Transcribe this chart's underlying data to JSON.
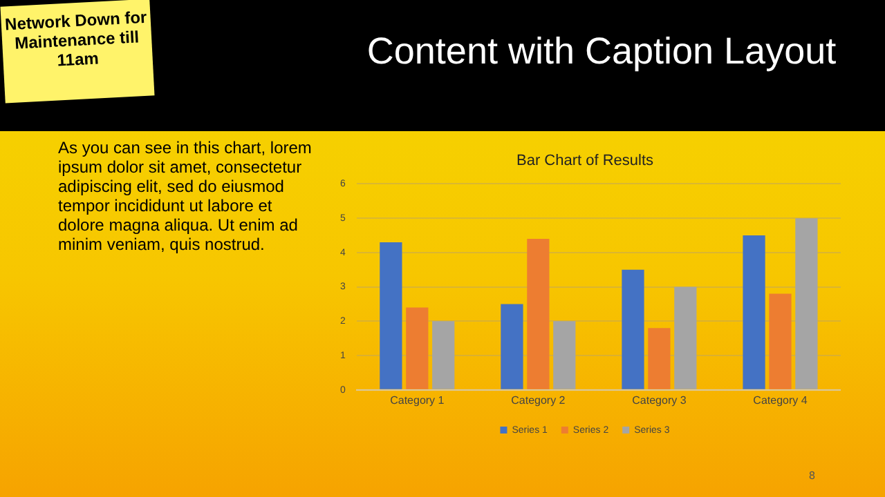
{
  "chart_data": {
    "type": "bar",
    "title": "Bar Chart of Results",
    "categories": [
      "Category 1",
      "Category 2",
      "Category 3",
      "Category 4"
    ],
    "series": [
      {
        "name": "Series 1",
        "color": "#4472c4",
        "values": [
          4.3,
          2.5,
          3.5,
          4.5
        ]
      },
      {
        "name": "Series 2",
        "color": "#ed7d31",
        "values": [
          2.4,
          4.4,
          1.8,
          2.8
        ]
      },
      {
        "name": "Series 3",
        "color": "#a5a5a5",
        "values": [
          2,
          2,
          3,
          5
        ]
      }
    ],
    "ylim": [
      0,
      6
    ],
    "yticks": [
      0,
      1,
      2,
      3,
      4,
      5,
      6
    ],
    "grid": "y",
    "legend": "bottom",
    "annotations": [
      "Network Down for Maintenance till 11am",
      "Content with Caption Layout",
      "As you can see in this chart, lorem ipsum dolor sit amet, consectetur adipiscing elit, sed do eiusmod tempor incididunt ut labore et dolore magna aliqua. Ut enim ad minim veniam, quis nostrud.",
      "8"
    ]
  }
}
